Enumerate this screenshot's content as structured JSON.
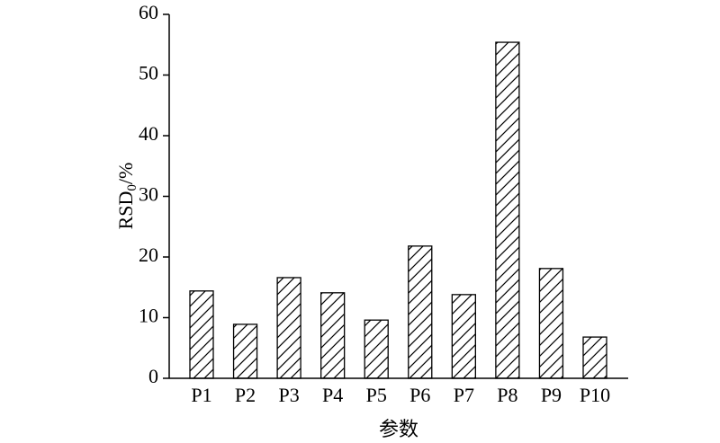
{
  "chart_data": {
    "type": "bar",
    "y_label": {
      "main": "RSD",
      "sub": "0",
      "tail": "/%"
    },
    "x_label": "参数",
    "categories": [
      "P1",
      "P2",
      "P3",
      "P4",
      "P5",
      "P6",
      "P7",
      "P8",
      "P9",
      "P10"
    ],
    "values": [
      14.4,
      8.9,
      16.6,
      14.1,
      9.6,
      21.8,
      13.8,
      55.4,
      18.1,
      6.8
    ],
    "color": "#ffffff",
    "hatch": "/",
    "ylim": [
      0,
      60
    ],
    "yticks": [
      0,
      10,
      20,
      30,
      40,
      50,
      60
    ],
    "grid": false
  }
}
